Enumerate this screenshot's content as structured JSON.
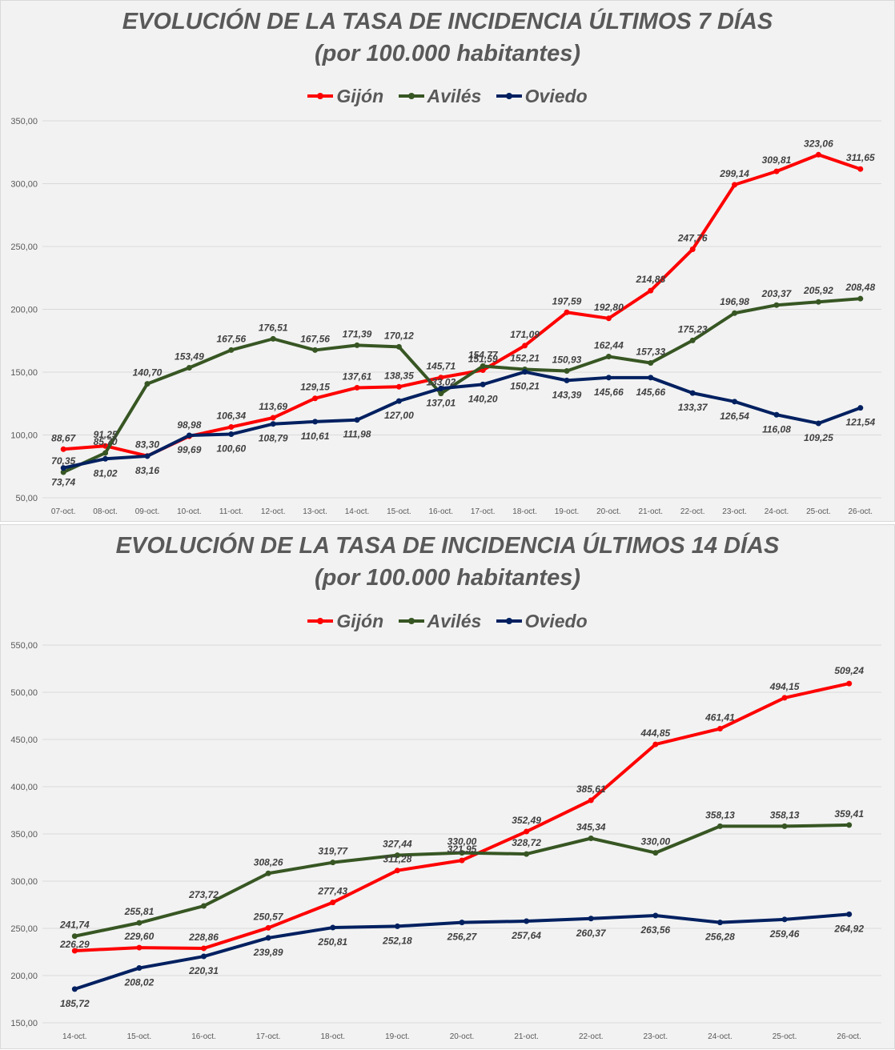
{
  "chart_data": [
    {
      "type": "line",
      "title": "EVOLUCIÓN DE LA TASA DE INCIDENCIA ÚLTIMOS 7 DÍAS",
      "subtitle": "(por 100.000 habitantes)",
      "xlabel": "",
      "ylabel": "",
      "categories": [
        "07-oct.",
        "08-oct.",
        "09-oct.",
        "10-oct.",
        "11-oct.",
        "12-oct.",
        "13-oct.",
        "14-oct.",
        "15-oct.",
        "16-oct.",
        "17-oct.",
        "18-oct.",
        "19-oct.",
        "20-oct.",
        "21-oct.",
        "22-oct.",
        "23-oct.",
        "24-oct.",
        "25-oct.",
        "26-oct."
      ],
      "ylim": [
        50,
        350
      ],
      "yticks": [
        "50,00",
        "100,00",
        "150,00",
        "200,00",
        "250,00",
        "300,00",
        "350,00"
      ],
      "grid": true,
      "legend_position": "top-center",
      "series": [
        {
          "name": "Gijón",
          "color": "#ff0000",
          "values": [
            88.67,
            91.25,
            83.3,
            98.98,
            106.34,
            113.69,
            129.15,
            137.61,
            138.35,
            145.71,
            151.59,
            171.09,
            197.59,
            192.8,
            214.88,
            247.76,
            299.14,
            309.81,
            323.06,
            311.65
          ],
          "labels": [
            "88,67",
            "91,25",
            "83,30",
            "98,98",
            "106,34",
            "113,69",
            "129,15",
            "137,61",
            "138,35",
            "145,71",
            "151,59",
            "171,09",
            "197,59",
            "192,80",
            "214,88",
            "247,76",
            "299,14",
            "309,81",
            "323,06",
            "311,65"
          ]
        },
        {
          "name": "Avilés",
          "color": "#375623",
          "values": [
            70.35,
            85.7,
            140.7,
            153.49,
            167.56,
            176.51,
            167.56,
            171.39,
            170.12,
            133.02,
            154.77,
            152.21,
            150.93,
            162.44,
            157.33,
            175.23,
            196.98,
            203.37,
            205.92,
            208.48
          ],
          "labels": [
            "70,35",
            "85,70",
            "140,70",
            "153,49",
            "167,56",
            "176,51",
            "167,56",
            "171,39",
            "170,12",
            "133,02",
            "154,77",
            "152,21",
            "150,93",
            "162,44",
            "157,33",
            "175,23",
            "196,98",
            "203,37",
            "205,92",
            "208,48"
          ]
        },
        {
          "name": "Oviedo",
          "color": "#002060",
          "values": [
            73.74,
            81.02,
            83.16,
            99.69,
            100.6,
            108.79,
            110.61,
            111.98,
            127.0,
            137.01,
            140.2,
            150.21,
            143.39,
            145.66,
            145.66,
            133.37,
            126.54,
            116.08,
            109.25,
            121.54
          ],
          "labels": [
            "73,74",
            "81,02",
            "83,16",
            "99,69",
            "100,60",
            "108,79",
            "110,61",
            "111,98",
            "127,00",
            "137,01",
            "140,20",
            "150,21",
            "143,39",
            "145,66",
            "145,66",
            "133,37",
            "126,54",
            "116,08",
            "109,25",
            "121,54"
          ]
        }
      ]
    },
    {
      "type": "line",
      "title": "EVOLUCIÓN DE LA TASA DE INCIDENCIA ÚLTIMOS 14 DÍAS",
      "subtitle": "(por 100.000 habitantes)",
      "xlabel": "",
      "ylabel": "",
      "categories": [
        "14-oct.",
        "15-oct.",
        "16-oct.",
        "17-oct.",
        "18-oct.",
        "19-oct.",
        "20-oct.",
        "21-oct.",
        "22-oct.",
        "23-oct.",
        "24-oct.",
        "25-oct.",
        "26-oct."
      ],
      "ylim": [
        150,
        550
      ],
      "yticks": [
        "150,00",
        "200,00",
        "250,00",
        "300,00",
        "350,00",
        "400,00",
        "450,00",
        "500,00",
        "550,00"
      ],
      "grid": true,
      "legend_position": "top-center",
      "series": [
        {
          "name": "Gijón",
          "color": "#ff0000",
          "values": [
            226.29,
            229.6,
            228.86,
            250.57,
            277.43,
            311.28,
            321.95,
            352.49,
            385.61,
            444.85,
            461.41,
            494.15,
            509.24
          ],
          "labels": [
            "226,29",
            "229,60",
            "228,86",
            "250,57",
            "277,43",
            "311,28",
            "321,95",
            "352,49",
            "385,61",
            "444,85",
            "461,41",
            "494,15",
            "509,24"
          ]
        },
        {
          "name": "Avilés",
          "color": "#375623",
          "values": [
            241.74,
            255.81,
            273.72,
            308.26,
            319.77,
            327.44,
            330.0,
            328.72,
            345.34,
            330.0,
            358.13,
            358.13,
            359.41
          ],
          "labels": [
            "241,74",
            "255,81",
            "273,72",
            "308,26",
            "319,77",
            "327,44",
            "330,00",
            "328,72",
            "345,34",
            "330,00",
            "358,13",
            "358,13",
            "359,41"
          ]
        },
        {
          "name": "Oviedo",
          "color": "#002060",
          "values": [
            185.72,
            208.02,
            220.31,
            239.89,
            250.81,
            252.18,
            256.27,
            257.64,
            260.37,
            263.56,
            256.28,
            259.46,
            264.92
          ],
          "labels": [
            "185,72",
            "208,02",
            "220,31",
            "239,89",
            "250,81",
            "252,18",
            "256,27",
            "257,64",
            "260,37",
            "263,56",
            "256,28",
            "259,46",
            "264,92"
          ]
        }
      ]
    }
  ]
}
